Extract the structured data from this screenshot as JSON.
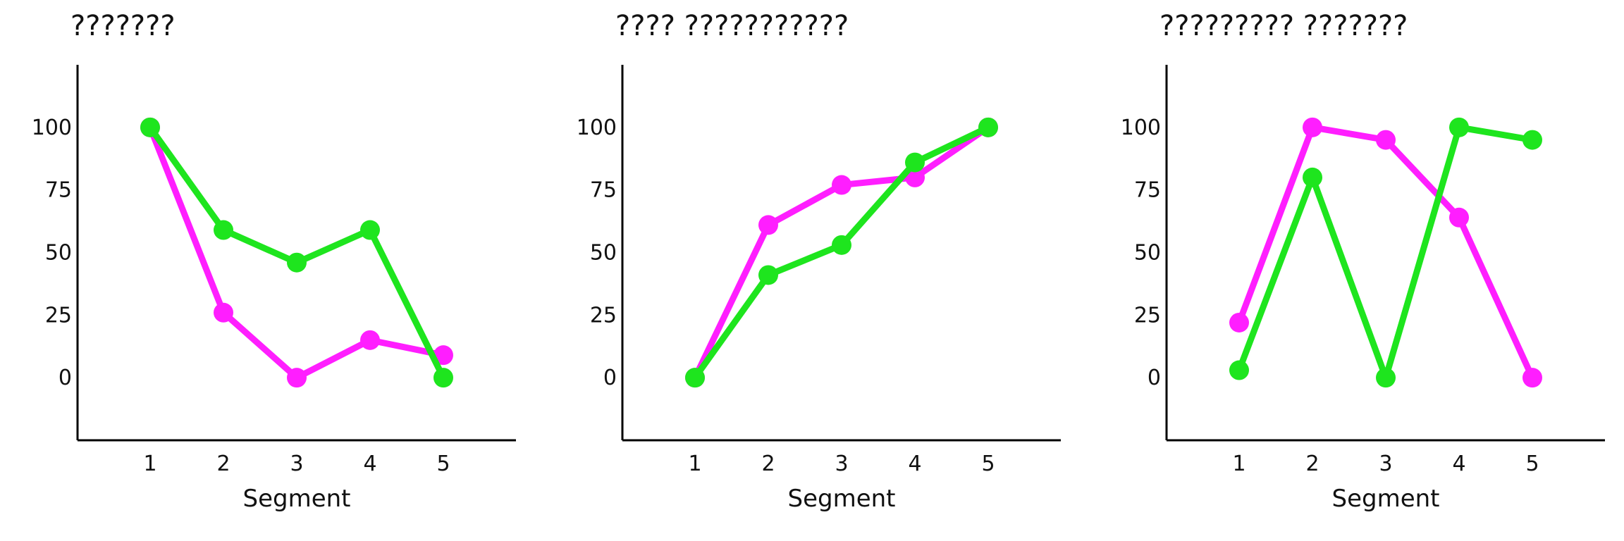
{
  "colors": {
    "magenta": "#ff1eff",
    "green": "#1ee51e"
  },
  "chart_data": [
    {
      "type": "line",
      "title": "???????",
      "xlabel": "Segment",
      "ylabel": "",
      "x": [
        1,
        2,
        3,
        4,
        5
      ],
      "x_ticks": [
        "1",
        "2",
        "3",
        "4",
        "5"
      ],
      "y_ticks": [
        "0",
        "25",
        "50",
        "75",
        "100"
      ],
      "ylim": [
        -25,
        125
      ],
      "grid": false,
      "series": [
        {
          "color": "#ff1eff",
          "values": [
            100,
            26,
            0,
            15,
            9
          ]
        },
        {
          "color": "#1ee51e",
          "values": [
            100,
            59,
            46,
            59,
            0
          ]
        }
      ]
    },
    {
      "type": "line",
      "title": "???? ???????????",
      "xlabel": "Segment",
      "ylabel": "",
      "x": [
        1,
        2,
        3,
        4,
        5
      ],
      "x_ticks": [
        "1",
        "2",
        "3",
        "4",
        "5"
      ],
      "y_ticks": [
        "0",
        "25",
        "50",
        "75",
        "100"
      ],
      "ylim": [
        -25,
        125
      ],
      "grid": false,
      "series": [
        {
          "color": "#ff1eff",
          "values": [
            0,
            61,
            77,
            80,
            100
          ]
        },
        {
          "color": "#1ee51e",
          "values": [
            0,
            41,
            53,
            86,
            100
          ]
        }
      ]
    },
    {
      "type": "line",
      "title": "????????? ???????",
      "xlabel": "Segment",
      "ylabel": "",
      "x": [
        1,
        2,
        3,
        4,
        5
      ],
      "x_ticks": [
        "1",
        "2",
        "3",
        "4",
        "5"
      ],
      "y_ticks": [
        "0",
        "25",
        "50",
        "75",
        "100"
      ],
      "ylim": [
        -25,
        125
      ],
      "grid": false,
      "series": [
        {
          "color": "#ff1eff",
          "values": [
            22,
            100,
            95,
            64,
            0
          ]
        },
        {
          "color": "#1ee51e",
          "values": [
            3,
            80,
            0,
            100,
            95
          ]
        }
      ]
    }
  ]
}
